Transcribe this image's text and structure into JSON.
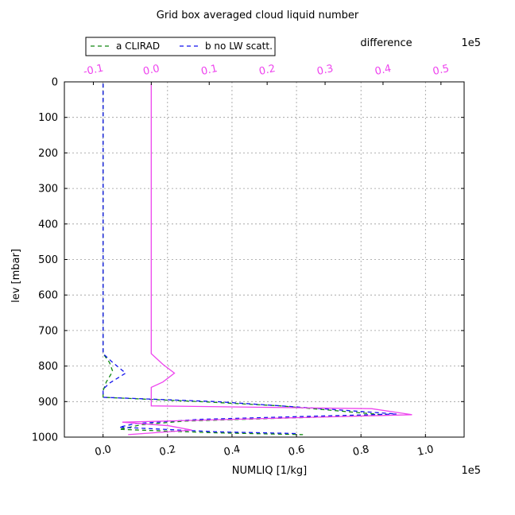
{
  "chart_data": {
    "type": "line",
    "title": "Grid box averaged cloud liquid number",
    "xlabel": "NUMLIQ [1/kg]",
    "ylabel": "lev [mbar]",
    "x_offset_label": "1e5",
    "xlim": [
      -0.12,
      1.12
    ],
    "ylim": [
      1000,
      0
    ],
    "x_ticks": [
      "0.0",
      "0.2",
      "0.4",
      "0.6",
      "0.8",
      "1.0"
    ],
    "y_ticks": [
      "0",
      "100",
      "200",
      "300",
      "400",
      "500",
      "600",
      "700",
      "800",
      "900",
      "1000"
    ],
    "grid": true,
    "legend_position": "top-left",
    "top_axis": {
      "label": "difference",
      "offset_label": "1e5",
      "xlim": [
        -0.15,
        0.54
      ],
      "ticks": [
        "-0.1",
        "0.0",
        "0.1",
        "0.2",
        "0.3",
        "0.4",
        "0.5"
      ],
      "color": "#ee44ee"
    },
    "series": [
      {
        "name": "a CLIRAD",
        "axis": "bottom",
        "style": "dashed",
        "color": "#118811",
        "points": [
          [
            0.0,
            5
          ],
          [
            0.0,
            765
          ],
          [
            0.02,
            790
          ],
          [
            0.03,
            815
          ],
          [
            0.01,
            845
          ],
          [
            0.0,
            870
          ],
          [
            0.0,
            888
          ],
          [
            0.3,
            900
          ],
          [
            0.55,
            912
          ],
          [
            0.88,
            938
          ],
          [
            0.25,
            955
          ],
          [
            0.12,
            965
          ],
          [
            0.05,
            978
          ],
          [
            0.35,
            988
          ],
          [
            0.62,
            993
          ]
        ]
      },
      {
        "name": "b no LW scatt.",
        "axis": "bottom",
        "style": "dashed",
        "color": "#1111ee",
        "points": [
          [
            0.0,
            5
          ],
          [
            0.0,
            765
          ],
          [
            0.03,
            790
          ],
          [
            0.07,
            820
          ],
          [
            0.02,
            848
          ],
          [
            0.0,
            865
          ],
          [
            0.0,
            888
          ],
          [
            0.35,
            900
          ],
          [
            0.6,
            915
          ],
          [
            0.91,
            935
          ],
          [
            0.3,
            950
          ],
          [
            0.1,
            962
          ],
          [
            0.05,
            972
          ],
          [
            0.35,
            985
          ],
          [
            0.6,
            990
          ]
        ]
      },
      {
        "name": "",
        "axis": "top",
        "style": "solid",
        "color": "#ee44ee",
        "points": [
          [
            0.0,
            5
          ],
          [
            0.0,
            765
          ],
          [
            0.02,
            795
          ],
          [
            0.04,
            820
          ],
          [
            0.02,
            845
          ],
          [
            0.0,
            860
          ],
          [
            0.0,
            912
          ],
          [
            0.38,
            920
          ],
          [
            0.45,
            937
          ],
          [
            -0.05,
            958
          ],
          [
            0.03,
            968
          ],
          [
            0.07,
            980
          ],
          [
            -0.04,
            993
          ]
        ]
      }
    ]
  }
}
